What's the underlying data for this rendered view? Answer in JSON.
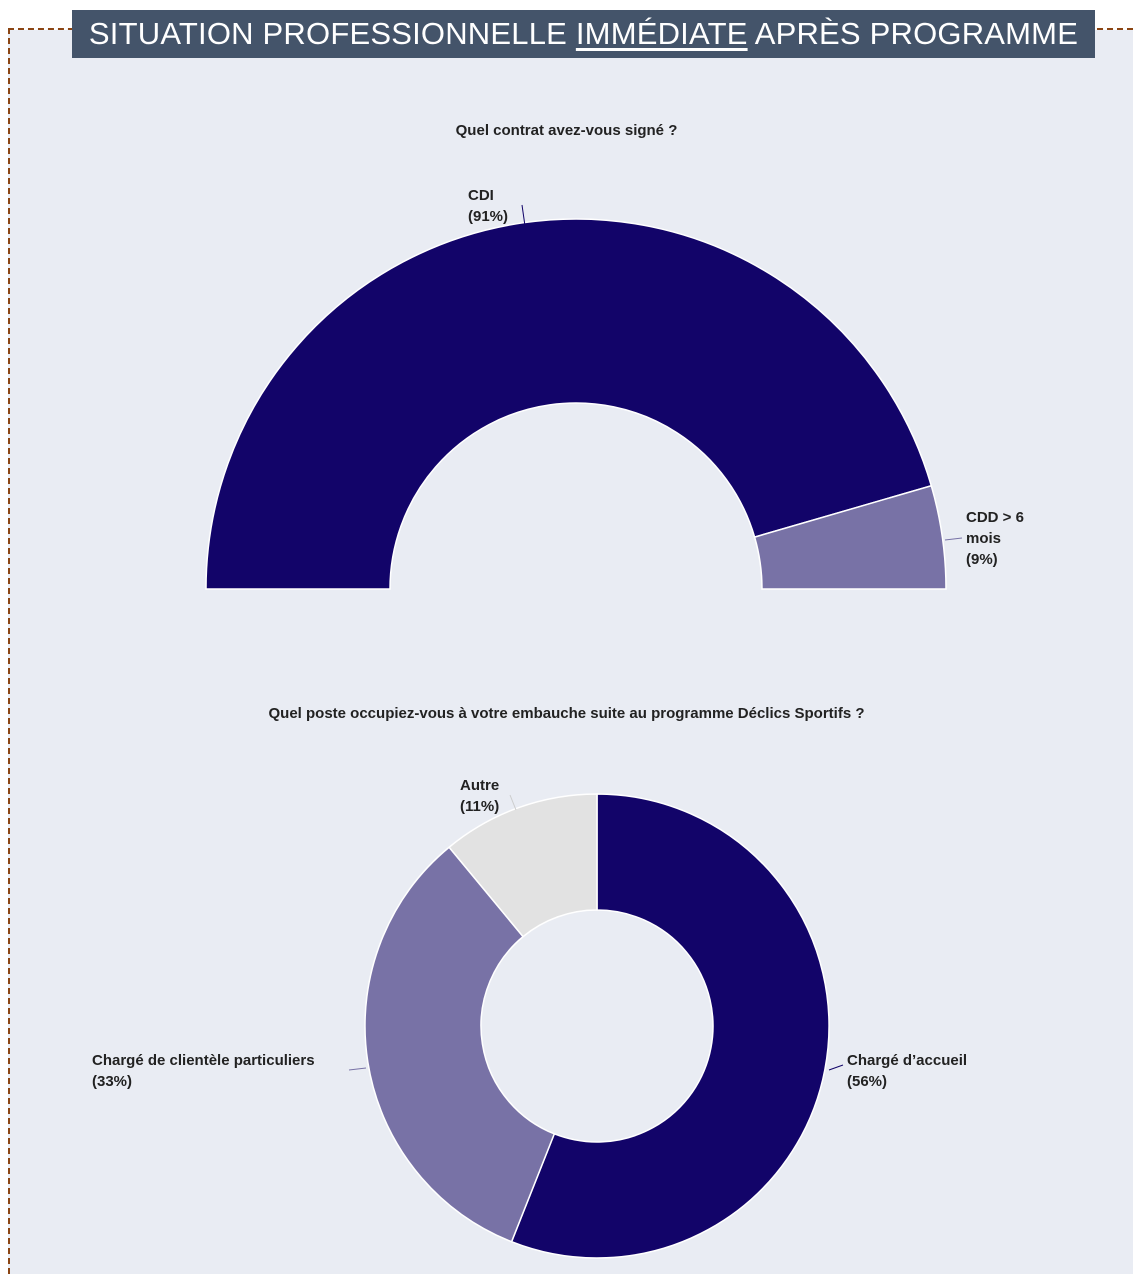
{
  "header": {
    "title_before": "SITUATION PROFESSIONNELLE ",
    "title_emphasis": "IMMÉDIATE",
    "title_after": " APRÈS PROGRAMME"
  },
  "chart_data": [
    {
      "type": "pie",
      "variant": "semi-donut",
      "title": "Quel contrat avez-vous signé ?",
      "categories": [
        "CDI",
        "CDD > 6 mois"
      ],
      "values": [
        91,
        9
      ],
      "labels": [
        "(91%)",
        "(9%)"
      ],
      "colors": [
        "#120469",
        "#7872a6"
      ]
    },
    {
      "type": "pie",
      "variant": "donut",
      "title": "Quel poste occupiez-vous à votre embauche suite au programme Déclics Sportifs ?",
      "categories": [
        "Chargé d’accueil",
        "Chargé de clientèle particuliers",
        "Autre"
      ],
      "values": [
        56,
        33,
        11
      ],
      "labels": [
        "(56%)",
        "(33%)",
        "(11%)"
      ],
      "colors": [
        "#120469",
        "#7872a6",
        "#e2e2e2"
      ]
    }
  ]
}
